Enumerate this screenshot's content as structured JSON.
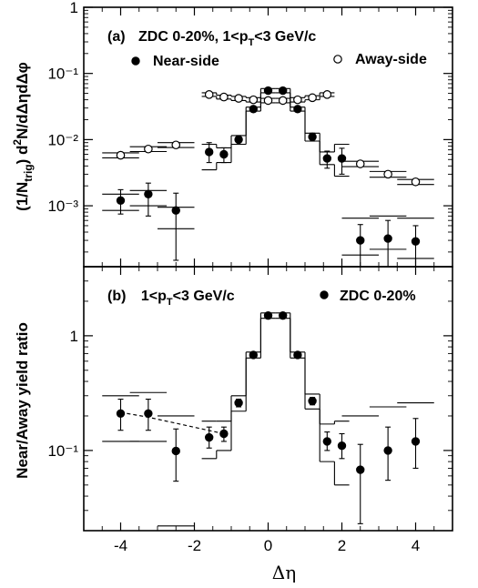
{
  "chart_data": [
    {
      "type": "scatter",
      "panel": "(a)",
      "title": "ZDC 0-20%, 1<p_T<3 GeV/c",
      "ylabel": "(1/N_trig) d²N/dΔηdΔφ",
      "xlabel": "",
      "xlim": [
        -5,
        5
      ],
      "ylim": [
        0.00012,
        1
      ],
      "yscale": "log",
      "ytick_labels": [
        "1",
        "10⁻¹",
        "10⁻²",
        "10⁻³"
      ],
      "legend": [
        "Near-side",
        "Away-side"
      ],
      "series": [
        {
          "name": "Near-side",
          "marker": "filled-circle",
          "points": [
            {
              "x": -4.0,
              "y": 0.0012,
              "err": [
                0.00045,
                0.00055
              ],
              "sys": [
                0.00085,
                0.0015
              ],
              "hw": 0.5
            },
            {
              "x": -3.25,
              "y": 0.0015,
              "err": [
                0.0008,
                0.0007
              ],
              "sys": [
                0.001,
                0.0017
              ],
              "hw": 0.5
            },
            {
              "x": -2.5,
              "y": 0.00085,
              "err": [
                0.0007,
                0.0007
              ],
              "sys": [
                0.00045,
                0.00095
              ],
              "hw": 0.5
            },
            {
              "x": -1.6,
              "y": 0.0065,
              "err": [
                0.002,
                0.0025
              ],
              "sys": [
                0.0035,
                0.0085
              ],
              "hw": 0.2
            },
            {
              "x": -1.2,
              "y": 0.006,
              "err": [
                0.0015,
                0.0015
              ],
              "sys": [
                0.0045,
                0.0075
              ],
              "hw": 0.2
            },
            {
              "x": -0.8,
              "y": 0.01,
              "err": [
                0.0015,
                0.0015
              ],
              "sys": [
                0.0085,
                0.0115
              ],
              "hw": 0.2
            },
            {
              "x": -0.4,
              "y": 0.029,
              "err": [
                0.002,
                0.002
              ],
              "sys": [
                0.027,
                0.031
              ],
              "hw": 0.2
            },
            {
              "x": 0.0,
              "y": 0.055,
              "err": [
                0.002,
                0.002
              ],
              "sys": [
                0.051,
                0.059
              ],
              "hw": 0.2
            },
            {
              "x": 0.4,
              "y": 0.055,
              "err": [
                0.002,
                0.002
              ],
              "sys": [
                0.051,
                0.059
              ],
              "hw": 0.2
            },
            {
              "x": 0.8,
              "y": 0.029,
              "err": [
                0.002,
                0.002
              ],
              "sys": [
                0.027,
                0.031
              ],
              "hw": 0.2
            },
            {
              "x": 1.2,
              "y": 0.011,
              "err": [
                0.0015,
                0.0015
              ],
              "sys": [
                0.0095,
                0.0125
              ],
              "hw": 0.2
            },
            {
              "x": 1.6,
              "y": 0.0052,
              "err": [
                0.0015,
                0.0015
              ],
              "sys": [
                0.0042,
                0.0065
              ],
              "hw": 0.2
            },
            {
              "x": 2.0,
              "y": 0.0052,
              "err": [
                0.0022,
                0.0022
              ],
              "sys": [
                0.0028,
                0.0085
              ],
              "hw": 0.2
            },
            {
              "x": 2.5,
              "y": 0.0003,
              "err": [
                0.00018,
                0.00022
              ],
              "sys": [
                0.00018,
                0.00065
              ],
              "hw": 0.5
            },
            {
              "x": 3.25,
              "y": 0.00032,
              "err": [
                0.0002,
                0.00028
              ],
              "sys": [
                0.00022,
                0.0007
              ],
              "hw": 0.5
            },
            {
              "x": 4.0,
              "y": 0.00029,
              "err": [
                0.00017,
                0.00021
              ],
              "sys": [
                0.00016,
                0.00065
              ],
              "hw": 0.5
            }
          ]
        },
        {
          "name": "Away-side",
          "marker": "open-circle",
          "points": [
            {
              "x": -4.0,
              "y": 0.0058,
              "sys": [
                0.0053,
                0.0063
              ],
              "hw": 0.5
            },
            {
              "x": -3.25,
              "y": 0.0072,
              "sys": [
                0.0066,
                0.0078
              ],
              "hw": 0.5
            },
            {
              "x": -2.5,
              "y": 0.0083,
              "sys": [
                0.0076,
                0.009
              ],
              "hw": 0.5
            },
            {
              "x": -1.6,
              "y": 0.048,
              "sys": [
                0.045,
                0.051
              ],
              "hw": 0.2
            },
            {
              "x": -1.2,
              "y": 0.044,
              "sys": [
                0.041,
                0.047
              ],
              "hw": 0.2
            },
            {
              "x": -0.8,
              "y": 0.042,
              "sys": [
                0.039,
                0.045
              ],
              "hw": 0.2
            },
            {
              "x": -0.4,
              "y": 0.04,
              "sys": [
                0.037,
                0.043
              ],
              "hw": 0.2
            },
            {
              "x": 0.0,
              "y": 0.039,
              "sys": [
                0.036,
                0.042
              ],
              "hw": 0.2
            },
            {
              "x": 0.4,
              "y": 0.039,
              "sys": [
                0.036,
                0.042
              ],
              "hw": 0.2
            },
            {
              "x": 0.8,
              "y": 0.04,
              "sys": [
                0.037,
                0.043
              ],
              "hw": 0.2
            },
            {
              "x": 1.2,
              "y": 0.043,
              "sys": [
                0.04,
                0.046
              ],
              "hw": 0.2
            },
            {
              "x": 1.6,
              "y": 0.048,
              "sys": [
                0.045,
                0.051
              ],
              "hw": 0.2
            },
            {
              "x": 2.5,
              "y": 0.0043,
              "sys": [
                0.0039,
                0.0047
              ],
              "hw": 0.5
            },
            {
              "x": 3.25,
              "y": 0.003,
              "sys": [
                0.0027,
                0.0033
              ],
              "hw": 0.5
            },
            {
              "x": 4.0,
              "y": 0.0023,
              "sys": [
                0.0021,
                0.0025
              ],
              "hw": 0.5
            }
          ]
        }
      ]
    },
    {
      "type": "scatter",
      "panel": "(b)",
      "title": "1<p_T<3 GeV/c",
      "ylabel": "Near/Away yield ratio",
      "xlabel": "Δη",
      "xlim": [
        -5,
        5
      ],
      "ylim": [
        0.02,
        4
      ],
      "yscale": "log",
      "xtick_labels": [
        "-4",
        "-2",
        "0",
        "2",
        "4"
      ],
      "ytick_labels": [
        "1",
        "10⁻¹"
      ],
      "legend": [
        "ZDC 0-20%"
      ],
      "series": [
        {
          "name": "ZDC 0-20%",
          "marker": "filled-circle",
          "points": [
            {
              "x": -4.0,
              "y": 0.21,
              "err": [
                0.06,
                0.07
              ],
              "sys": [
                0.12,
                0.3
              ],
              "hw": 0.5
            },
            {
              "x": -3.25,
              "y": 0.21,
              "err": [
                0.06,
                0.07
              ],
              "sys": [
                0.12,
                0.32
              ],
              "hw": 0.5
            },
            {
              "x": -2.5,
              "y": 0.099,
              "err": [
                0.045,
                0.055
              ],
              "sys": [
                0.022,
                0.2
              ],
              "hw": 0.5
            },
            {
              "x": -1.6,
              "y": 0.13,
              "err": [
                0.025,
                0.03
              ],
              "sys": [
                0.085,
                0.18
              ],
              "hw": 0.2
            },
            {
              "x": -1.2,
              "y": 0.14,
              "err": [
                0.02,
                0.02
              ],
              "sys": [
                0.1,
                0.18
              ],
              "hw": 0.2
            },
            {
              "x": -0.8,
              "y": 0.26,
              "err": [
                0.02,
                0.02
              ],
              "sys": [
                0.22,
                0.3
              ],
              "hw": 0.2
            },
            {
              "x": -0.4,
              "y": 0.68,
              "err": [
                0.02,
                0.02
              ],
              "sys": [
                0.64,
                0.72
              ],
              "hw": 0.2
            },
            {
              "x": 0.0,
              "y": 1.5,
              "err": [
                0.03,
                0.03
              ],
              "sys": [
                1.42,
                1.58
              ],
              "hw": 0.2
            },
            {
              "x": 0.4,
              "y": 1.5,
              "err": [
                0.03,
                0.03
              ],
              "sys": [
                1.42,
                1.58
              ],
              "hw": 0.2
            },
            {
              "x": 0.8,
              "y": 0.68,
              "err": [
                0.02,
                0.02
              ],
              "sys": [
                0.64,
                0.72
              ],
              "hw": 0.2
            },
            {
              "x": 1.2,
              "y": 0.27,
              "err": [
                0.02,
                0.02
              ],
              "sys": [
                0.23,
                0.31
              ],
              "hw": 0.2
            },
            {
              "x": 1.6,
              "y": 0.12,
              "err": [
                0.02,
                0.025
              ],
              "sys": [
                0.08,
                0.17
              ],
              "hw": 0.2
            },
            {
              "x": 2.0,
              "y": 0.11,
              "err": [
                0.025,
                0.03
              ],
              "sys": [
                0.05,
                0.18
              ],
              "hw": 0.2
            },
            {
              "x": 2.5,
              "y": 0.068,
              "err": [
                0.045,
                0.045
              ],
              "sys": [
                0.02,
                0.2
              ],
              "hw": 0.5
            },
            {
              "x": 3.25,
              "y": 0.1,
              "err": [
                0.045,
                0.06
              ],
              "sys": [
                0.02,
                0.24
              ],
              "hw": 0.5
            },
            {
              "x": 4.0,
              "y": 0.12,
              "err": [
                0.05,
                0.07
              ],
              "sys": [
                0.02,
                0.26
              ],
              "hw": 0.5
            }
          ],
          "fit": {
            "x": [
              -4.0,
              -3.25,
              -1.2
            ],
            "y": [
              0.215,
              0.195,
              0.14
            ]
          }
        }
      ]
    }
  ],
  "labels": {
    "panel_a_tag": "(a)",
    "panel_a_cond_main": "ZDC 0-20%, 1<p",
    "panel_a_cond_sub": "T",
    "panel_a_cond_tail": "<3 GeV/c",
    "near_legend": "Near-side",
    "away_legend": "Away-side",
    "panel_b_tag": "(b)",
    "panel_b_cond_main": "1<p",
    "panel_b_cond_sub": "T",
    "panel_b_cond_tail": "<3 GeV/c",
    "zdc_legend": "ZDC 0-20%",
    "ylabel_a_pre": "(1/N",
    "ylabel_a_sub": "trig",
    "ylabel_a_post": ") d",
    "ylabel_a_sup": "2",
    "ylabel_a_tail": "N/dΔηdΔφ",
    "ylabel_b": "Near/Away yield ratio",
    "xlabel": "Δη"
  }
}
